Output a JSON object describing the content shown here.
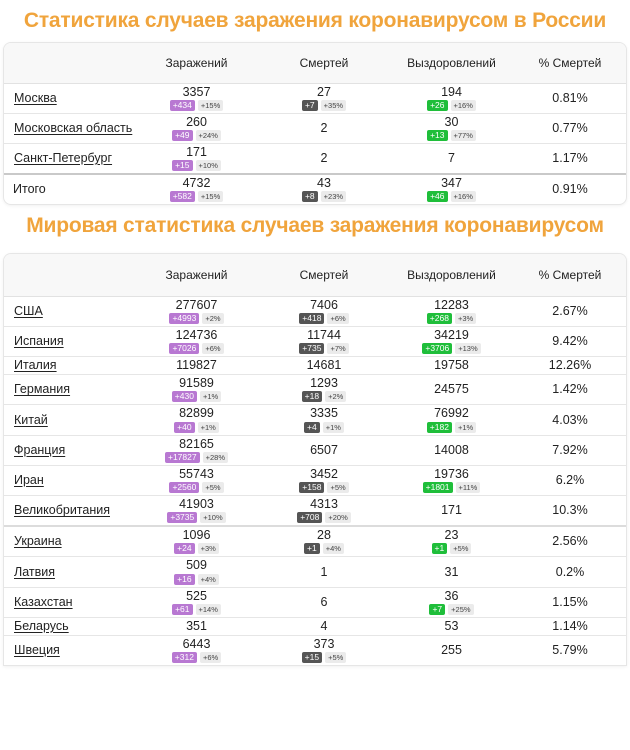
{
  "russia": {
    "title": "Статистика случаев заражения коронавирусом в России",
    "headers": [
      "",
      "Заражений",
      "Смертей",
      "Выздоровлений",
      "% Смертей"
    ],
    "rows": [
      {
        "name": "Москва",
        "infected": "3357",
        "infected_delta": "+434",
        "infected_pct": "+15%",
        "deaths": "27",
        "deaths_delta": "+7",
        "deaths_pct": "+35%",
        "recovered": "194",
        "recovered_delta": "+26",
        "recovered_pct": "+16%",
        "death_rate": "0.81%"
      },
      {
        "name": "Московская область",
        "infected": "260",
        "infected_delta": "+49",
        "infected_pct": "+24%",
        "deaths": "2",
        "deaths_delta": null,
        "deaths_pct": null,
        "recovered": "30",
        "recovered_delta": "+13",
        "recovered_pct": "+77%",
        "death_rate": "0.77%"
      },
      {
        "name": "Санкт-Петербург",
        "infected": "171",
        "infected_delta": "+15",
        "infected_pct": "+10%",
        "deaths": "2",
        "deaths_delta": null,
        "deaths_pct": null,
        "recovered": "7",
        "recovered_delta": null,
        "recovered_pct": null,
        "death_rate": "1.17%"
      }
    ],
    "total": {
      "name": "Итого",
      "infected": "4732",
      "infected_delta": "+582",
      "infected_pct": "+15%",
      "deaths": "43",
      "deaths_delta": "+8",
      "deaths_pct": "+23%",
      "recovered": "347",
      "recovered_delta": "+46",
      "recovered_pct": "+16%",
      "death_rate": "0.91%"
    }
  },
  "world": {
    "title": "Мировая статистика случаев заражения коронавирусом",
    "headers": [
      "",
      "Заражений",
      "Смертей",
      "Выздоровлений",
      "% Смертей"
    ],
    "rows": [
      {
        "name": "США",
        "infected": "277607",
        "infected_delta": "+4993",
        "infected_pct": "+2%",
        "deaths": "7406",
        "deaths_delta": "+418",
        "deaths_pct": "+6%",
        "recovered": "12283",
        "recovered_delta": "+268",
        "recovered_pct": "+3%",
        "death_rate": "2.67%"
      },
      {
        "name": "Испания",
        "infected": "124736",
        "infected_delta": "+7026",
        "infected_pct": "+6%",
        "deaths": "11744",
        "deaths_delta": "+735",
        "deaths_pct": "+7%",
        "recovered": "34219",
        "recovered_delta": "+3706",
        "recovered_pct": "+13%",
        "death_rate": "9.42%"
      },
      {
        "name": "Италия",
        "infected": "119827",
        "infected_delta": null,
        "infected_pct": null,
        "deaths": "14681",
        "deaths_delta": null,
        "deaths_pct": null,
        "recovered": "19758",
        "recovered_delta": null,
        "recovered_pct": null,
        "death_rate": "12.26%"
      },
      {
        "name": "Германия",
        "infected": "91589",
        "infected_delta": "+430",
        "infected_pct": "+1%",
        "deaths": "1293",
        "deaths_delta": "+18",
        "deaths_pct": "+2%",
        "recovered": "24575",
        "recovered_delta": null,
        "recovered_pct": null,
        "death_rate": "1.42%"
      },
      {
        "name": "Китай",
        "infected": "82899",
        "infected_delta": "+40",
        "infected_pct": "+1%",
        "deaths": "3335",
        "deaths_delta": "+4",
        "deaths_pct": "+1%",
        "recovered": "76992",
        "recovered_delta": "+182",
        "recovered_pct": "+1%",
        "death_rate": "4.03%"
      },
      {
        "name": "Франция",
        "infected": "82165",
        "infected_delta": "+17827",
        "infected_pct": "+28%",
        "deaths": "6507",
        "deaths_delta": null,
        "deaths_pct": null,
        "recovered": "14008",
        "recovered_delta": null,
        "recovered_pct": null,
        "death_rate": "7.92%"
      },
      {
        "name": "Иран",
        "infected": "55743",
        "infected_delta": "+2560",
        "infected_pct": "+5%",
        "deaths": "3452",
        "deaths_delta": "+158",
        "deaths_pct": "+5%",
        "recovered": "19736",
        "recovered_delta": "+1801",
        "recovered_pct": "+11%",
        "death_rate": "6.2%"
      },
      {
        "name": "Великобритания",
        "infected": "41903",
        "infected_delta": "+3735",
        "infected_pct": "+10%",
        "deaths": "4313",
        "deaths_delta": "+708",
        "deaths_pct": "+20%",
        "recovered": "171",
        "recovered_delta": null,
        "recovered_pct": null,
        "death_rate": "10.3%"
      },
      {
        "name": "Украина",
        "infected": "1096",
        "infected_delta": "+24",
        "infected_pct": "+3%",
        "deaths": "28",
        "deaths_delta": "+1",
        "deaths_pct": "+4%",
        "recovered": "23",
        "recovered_delta": "+1",
        "recovered_pct": "+5%",
        "death_rate": "2.56%"
      },
      {
        "name": "Латвия",
        "infected": "509",
        "infected_delta": "+16",
        "infected_pct": "+4%",
        "deaths": "1",
        "deaths_delta": null,
        "deaths_pct": null,
        "recovered": "31",
        "recovered_delta": null,
        "recovered_pct": null,
        "death_rate": "0.2%"
      },
      {
        "name": "Казахстан",
        "infected": "525",
        "infected_delta": "+61",
        "infected_pct": "+14%",
        "deaths": "6",
        "deaths_delta": null,
        "deaths_pct": null,
        "recovered": "36",
        "recovered_delta": "+7",
        "recovered_pct": "+25%",
        "death_rate": "1.15%"
      },
      {
        "name": "Беларусь",
        "infected": "351",
        "infected_delta": null,
        "infected_pct": null,
        "deaths": "4",
        "deaths_delta": null,
        "deaths_pct": null,
        "recovered": "53",
        "recovered_delta": null,
        "recovered_pct": null,
        "death_rate": "1.14%"
      },
      {
        "name": "Швеция",
        "infected": "6443",
        "infected_delta": "+312",
        "infected_pct": "+6%",
        "deaths": "373",
        "deaths_delta": "+15",
        "deaths_pct": "+5%",
        "recovered": "255",
        "recovered_delta": null,
        "recovered_pct": null,
        "death_rate": "5.79%"
      }
    ]
  },
  "colors": {
    "title": "#f0a43c",
    "infected_badge": "#b878d2",
    "deaths_badge": "#555555",
    "recovered_badge": "#1fbe3a",
    "pct_badge": "#ebebeb"
  }
}
